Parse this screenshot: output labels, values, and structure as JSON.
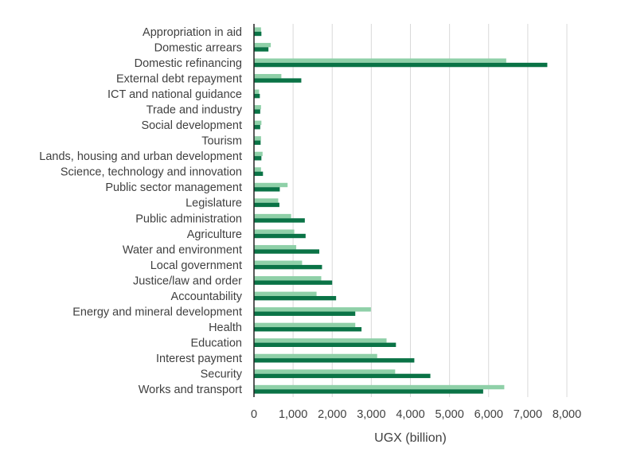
{
  "chart_data": {
    "type": "bar",
    "orientation": "horizontal",
    "categories": [
      "Appropriation in aid",
      "Domestic arrears",
      "Domestic refinancing",
      "External debt repayment",
      "ICT and national guidance",
      "Trade and industry",
      "Social development",
      "Tourism",
      "Lands, housing and urban development",
      "Science, technology and innovation",
      "Public sector management",
      "Legislature",
      "Public administration",
      "Agriculture",
      "Water and environment",
      "Local government",
      "Justice/law and order",
      "Accountability",
      "Energy and mineral development",
      "Health",
      "Education",
      "Interest payment",
      "Security",
      "Works and transport"
    ],
    "series": [
      {
        "color": "#8fd0a8",
        "values": [
          180,
          430,
          6450,
          700,
          130,
          180,
          190,
          180,
          220,
          180,
          860,
          620,
          950,
          1030,
          1080,
          1230,
          1720,
          1600,
          2990,
          2590,
          3390,
          3150,
          3610,
          6400
        ]
      },
      {
        "color": "#0a7346",
        "values": [
          190,
          370,
          7500,
          1210,
          150,
          160,
          160,
          170,
          190,
          230,
          660,
          650,
          1300,
          1320,
          1670,
          1740,
          2000,
          2100,
          2590,
          2750,
          3630,
          4100,
          4510,
          5860
        ]
      }
    ],
    "xlabel": "UGX (billion)",
    "ylabel": "",
    "title": "",
    "xlim": [
      0,
      8000
    ],
    "xticks": [
      0,
      1000,
      2000,
      3000,
      4000,
      5000,
      6000,
      7000,
      8000
    ],
    "xtick_labels": [
      "0",
      "1,000",
      "2,000",
      "3,000",
      "4,000",
      "5,000",
      "6,000",
      "7,000",
      "8,000"
    ],
    "grid": "vertical",
    "legend": "none"
  }
}
